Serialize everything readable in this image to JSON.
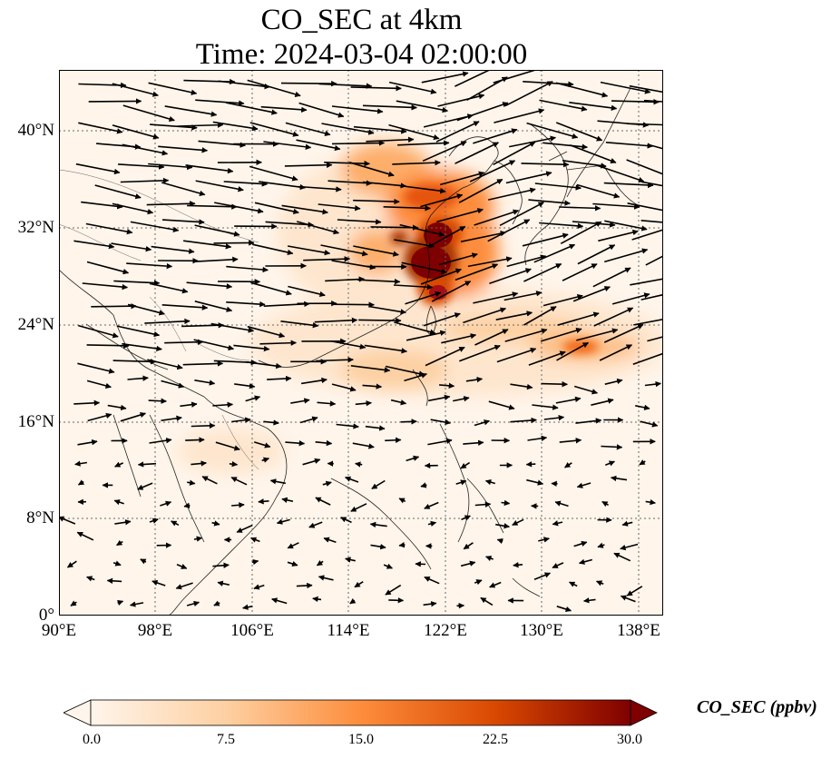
{
  "title_line1": "CO_SEC at 4km",
  "title_line2": "Time: 2024-03-04 02:00:00",
  "lat_ticks": [
    "40°N",
    "32°N",
    "24°N",
    "16°N",
    "8°N",
    "0°"
  ],
  "lon_ticks": [
    "90°E",
    "98°E",
    "106°E",
    "114°E",
    "122°E",
    "130°E",
    "138°E"
  ],
  "colorbar": {
    "label": "CO_SEC (ppbv)",
    "ticks": [
      "0.0",
      "7.5",
      "15.0",
      "22.5",
      "30.0"
    ],
    "colors": [
      "#fff5eb",
      "#fdd0a2",
      "#fd8d3c",
      "#d94801",
      "#7f0000"
    ]
  },
  "map_extent": {
    "lon": [
      90,
      140
    ],
    "lat": [
      0,
      45
    ]
  },
  "wind_field": "westerly wind vectors, strong over north China, weak and variable over the tropics",
  "high_concentration_region": "East China / Taiwan Strait, around 27-33°N, 118-124°E"
}
